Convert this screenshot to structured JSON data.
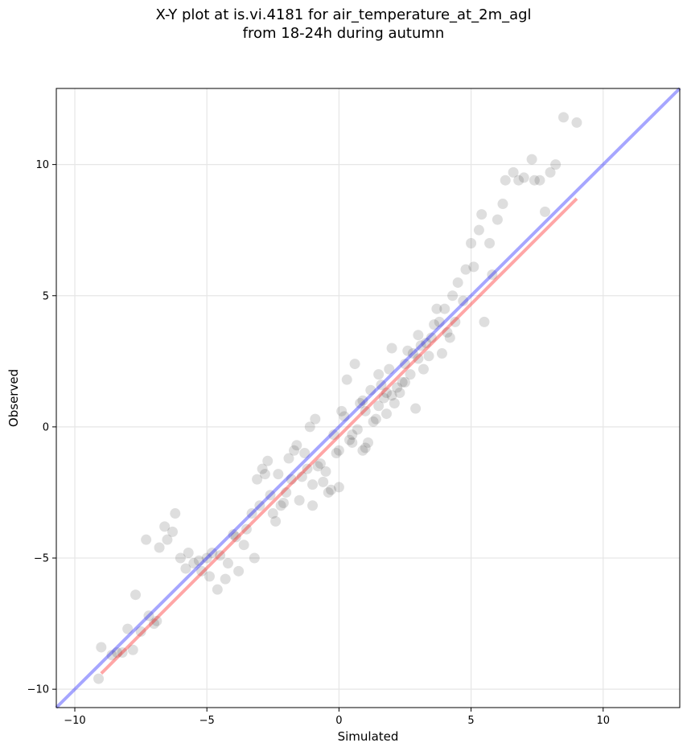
{
  "title": {
    "line1": "X-Y plot at is.vi.4181 for air_temperature_at_2m_agl",
    "line2": "from 18-24h during autumn"
  },
  "chart_data": {
    "type": "scatter",
    "title": "X-Y plot at is.vi.4181 for air_temperature_at_2m_agl\nfrom 18-24h during autumn",
    "xlabel": "Simulated",
    "ylabel": "Observed",
    "xlim": [
      -10.7,
      12.9
    ],
    "ylim": [
      -10.7,
      12.9
    ],
    "xticks": [
      -10,
      -5,
      0,
      5,
      10
    ],
    "yticks": [
      -10,
      -5,
      0,
      5,
      10
    ],
    "xtick_labels": [
      "−10",
      "−5",
      "0",
      "5",
      "10"
    ],
    "ytick_labels": [
      "−10",
      "−5",
      "0",
      "5",
      "10"
    ],
    "grid": true,
    "point_color": "#000000",
    "point_alpha": 0.13,
    "points_x": [
      -9.0,
      -8.6,
      -8.4,
      -8.0,
      -7.8,
      -7.5,
      -7.2,
      -7.0,
      -6.8,
      -6.5,
      -6.3,
      -6.0,
      -5.8,
      -5.5,
      -5.2,
      -5.0,
      -4.8,
      -4.5,
      -4.3,
      -4.0,
      -3.8,
      -3.5,
      -3.2,
      -3.0,
      -2.8,
      -2.5,
      -2.2,
      -2.0,
      -1.8,
      -1.5,
      -1.2,
      -1.0,
      -0.8,
      -0.5,
      -0.2,
      0.0,
      0.2,
      0.5,
      0.8,
      1.0,
      1.2,
      1.5,
      1.8,
      2.0,
      2.2,
      2.5,
      2.8,
      3.0,
      3.2,
      3.5,
      3.8,
      4.0,
      4.3,
      4.5,
      4.8,
      5.0,
      5.3,
      5.5,
      5.8,
      6.0,
      6.3,
      6.6,
      7.0,
      7.3,
      7.6,
      8.0,
      8.5,
      9.0,
      -9.1,
      -8.2,
      -7.7,
      -7.3,
      -6.9,
      -6.6,
      -6.2,
      -5.7,
      -5.3,
      -4.9,
      -4.6,
      -4.2,
      -3.9,
      -3.6,
      -3.3,
      -2.9,
      -2.6,
      -2.3,
      -2.1,
      -1.9,
      -1.6,
      -1.3,
      -1.1,
      -0.9,
      -0.6,
      -0.3,
      -0.1,
      0.1,
      0.3,
      0.6,
      0.9,
      1.1,
      1.4,
      1.7,
      1.9,
      2.3,
      2.6,
      2.9,
      3.1,
      3.4,
      3.7,
      4.1,
      4.4,
      4.7,
      5.1,
      5.4,
      5.7,
      6.2,
      6.8,
      7.4,
      7.8,
      8.2,
      -1.0,
      0.4,
      1.0,
      1.6,
      2.4,
      3.0,
      -1.4,
      -0.7,
      0.7,
      1.3,
      2.1,
      2.7,
      3.3,
      -2.4,
      -1.7,
      0.0,
      0.5,
      1.5,
      2.0,
      3.6,
      4.2,
      -3.1,
      -2.7,
      -0.4,
      0.9,
      1.8,
      2.5,
      3.9
    ],
    "points_y": [
      -8.4,
      -8.7,
      -8.6,
      -7.7,
      -8.5,
      -7.8,
      -7.2,
      -7.5,
      -4.6,
      -4.3,
      -4.0,
      -5.0,
      -5.4,
      -5.2,
      -5.5,
      -5.0,
      -4.8,
      -4.9,
      -5.8,
      -4.1,
      -5.5,
      -3.9,
      -5.0,
      -3.0,
      -1.8,
      -3.3,
      -3.0,
      -2.5,
      -2.0,
      -2.8,
      -1.6,
      -2.2,
      -1.5,
      -1.7,
      -0.3,
      -0.9,
      0.4,
      -0.3,
      0.9,
      0.6,
      1.4,
      2.0,
      1.3,
      3.0,
      1.5,
      2.4,
      2.8,
      3.5,
      2.2,
      3.4,
      4.0,
      4.5,
      5.0,
      5.5,
      6.0,
      7.0,
      7.5,
      4.0,
      5.8,
      7.9,
      9.4,
      9.7,
      9.5,
      10.2,
      9.4,
      9.7,
      11.8,
      11.6,
      -9.6,
      -8.6,
      -6.4,
      -4.3,
      -7.4,
      -3.8,
      -3.3,
      -4.8,
      -5.1,
      -5.7,
      -6.2,
      -5.2,
      -4.2,
      -4.5,
      -3.3,
      -1.6,
      -2.6,
      -1.8,
      -2.9,
      -1.2,
      -0.7,
      -1.0,
      0.0,
      0.3,
      -2.1,
      -2.4,
      -1.0,
      0.6,
      1.8,
      2.4,
      1.0,
      -0.6,
      0.3,
      1.1,
      2.2,
      1.3,
      2.9,
      0.7,
      3.1,
      2.7,
      4.5,
      3.6,
      4.0,
      4.8,
      6.1,
      8.1,
      7.0,
      8.5,
      9.4,
      9.4,
      8.2,
      10.0,
      -3.0,
      -0.5,
      -0.8,
      1.6,
      1.7,
      2.6,
      -1.9,
      -1.4,
      -0.1,
      0.2,
      0.9,
      2.0,
      3.2,
      -3.6,
      -0.9,
      -2.3,
      -0.6,
      0.8,
      1.2,
      3.9,
      3.4,
      -2.0,
      -1.3,
      -2.5,
      -0.9,
      0.5,
      1.7,
      2.8
    ],
    "lines": [
      {
        "color": "#0000ff",
        "alpha": 0.35,
        "x": [
          -10.7,
          12.9
        ],
        "y": [
          -10.7,
          12.9
        ]
      },
      {
        "color": "#ff0000",
        "alpha": 0.35,
        "x": [
          -9.0,
          9.0
        ],
        "y": [
          -9.4,
          8.7
        ]
      }
    ]
  }
}
